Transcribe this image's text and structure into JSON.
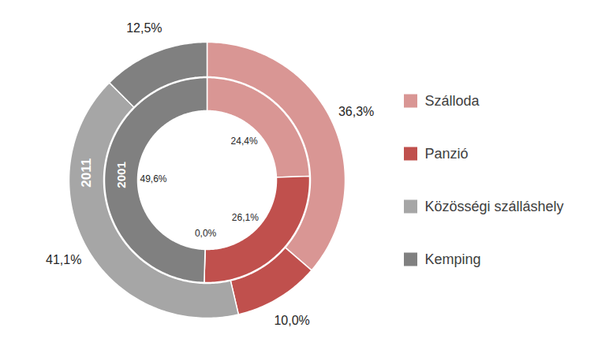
{
  "chart_data": {
    "type": "pie",
    "categories": [
      "Szálloda",
      "Panzió",
      "Közösségi szálláshely",
      "Kemping"
    ],
    "colors": [
      "#d99694",
      "#c0504d",
      "#a6a6a6",
      "#808080"
    ],
    "series": [
      {
        "name": "2001",
        "values": [
          24.4,
          26.1,
          0.0,
          49.6
        ],
        "value_labels": [
          "24,4%",
          "26,1%",
          "0,0%",
          "49,6%"
        ]
      },
      {
        "name": "2011",
        "values": [
          36.3,
          10.0,
          41.1,
          12.5
        ],
        "value_labels": [
          "36,3%",
          "10,0%",
          "41,1%",
          "12,5%"
        ]
      }
    ],
    "data_labels": true,
    "legend": "right"
  }
}
